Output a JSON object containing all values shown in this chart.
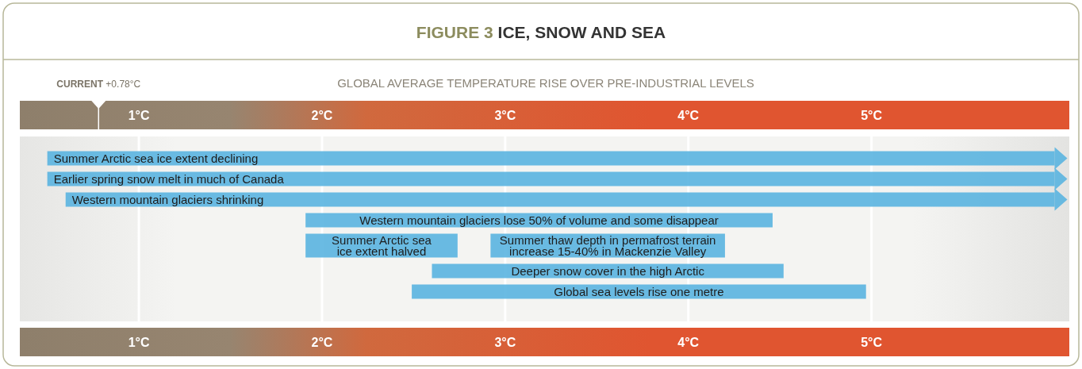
{
  "chart_data": {
    "type": "bar",
    "orientation": "horizontal",
    "title": "FIGURE 3 ICE, SNOW AND SEA",
    "x2label": "GLOBAL AVERAGE TEMPERATURE RISE OVER PRE-INDUSTRIAL LEVELS",
    "categories": [
      "Summer Arctic sea ice extent declining",
      "Earlier spring snow melt in much of Canada",
      "Western mountain glaciers shrinking",
      "Western mountain glaciers lose 50% of volume and some disappear",
      "Summer Arctic sea ice extent halved",
      "Deeper snow cover in the high Arctic",
      "Global sea levels rise one metre"
    ],
    "series": [
      {
        "color": "#5ab4e0",
        "base": [
          0.5,
          0.5,
          0.6,
          1.91,
          1.91,
          2.6,
          2.49
        ],
        "values": [
          5.5,
          5.5,
          5.4,
          2.55,
          0.83,
          1.92,
          2.48
        ]
      },
      {
        "name": "Summer thaw depth in permafrost terrain increase 15-40% in Mackenzie Valley",
        "color": "#5ab4e0",
        "base": [
          null,
          null,
          null,
          null,
          2.92,
          null,
          null
        ],
        "values": [
          null,
          null,
          null,
          null,
          1.28,
          null,
          null
        ]
      }
    ],
    "xlim": [
      0.35,
      6.08
    ],
    "xticks": [
      {
        "value": 1,
        "label": "1°C"
      },
      {
        "value": 2,
        "label": "2°C"
      },
      {
        "value": 3,
        "label": "3°C"
      },
      {
        "value": 4,
        "label": "4°C"
      },
      {
        "value": 5,
        "label": "5°C"
      }
    ],
    "x2lim": [
      0.35,
      6.08
    ],
    "x2ticks": [
      {
        "value": 1,
        "label": "1°C"
      },
      {
        "value": 2,
        "label": "2°C"
      },
      {
        "value": 3,
        "label": "3°C"
      },
      {
        "value": 4,
        "label": "4°C"
      },
      {
        "value": 5,
        "label": "5°C"
      }
    ],
    "ref_lines": [
      {
        "axis": "x",
        "value": 0.78,
        "label": "CURRENT +0.78°C",
        "color": "#ffffff"
      }
    ],
    "grid": "x"
  }
}
